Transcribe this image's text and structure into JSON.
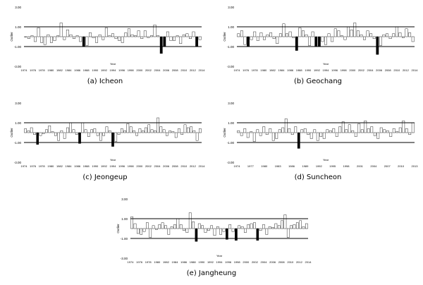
{
  "chart_data": [
    {
      "type": "bar",
      "caption": "(a) Icheon",
      "ylabel": "Outlier",
      "xlabel": "Year",
      "x_ticks": [
        "1974",
        "1976",
        "1978",
        "1980",
        "1982",
        "1984",
        "1986",
        "1988",
        "1990",
        "1992",
        "1994",
        "1996",
        "1998",
        "2000",
        "2002",
        "2004",
        "2006",
        "2008",
        "2010",
        "2012",
        "2014"
      ],
      "y_ticks": [
        "-3.00",
        "-1.00",
        "1.00",
        "3.00"
      ],
      "ylim": [
        -3,
        3
      ],
      "threshold_lines": [
        1,
        -1
      ],
      "x_start": 1974,
      "values": [
        0.0,
        -0.2,
        0.1,
        -0.5,
        0.9,
        -0.6,
        -0.8,
        0.2,
        -0.6,
        -0.4,
        0.1,
        1.4,
        -0.3,
        0.7,
        0.2,
        -0.2,
        0.1,
        -0.5,
        -1.0,
        -0.9,
        0.4,
        -0.1,
        -0.6,
        0.2,
        -0.3,
        0.9,
        0.1,
        0.3,
        -0.2,
        -0.4,
        -0.6,
        0.4,
        0.8,
        0.2,
        0.1,
        0.6,
        -0.2,
        0.6,
        -0.1,
        0.1,
        1.2,
        0.1,
        -1.7,
        -1.0,
        0.5,
        -0.4,
        -0.4,
        0.1,
        -0.7,
        0.2,
        0.3,
        -0.2,
        0.5,
        -1.0,
        -0.3
      ],
      "highlighted_values": [
        1.0,
        -1.0
      ],
      "notes": ""
    }
  ]
}
